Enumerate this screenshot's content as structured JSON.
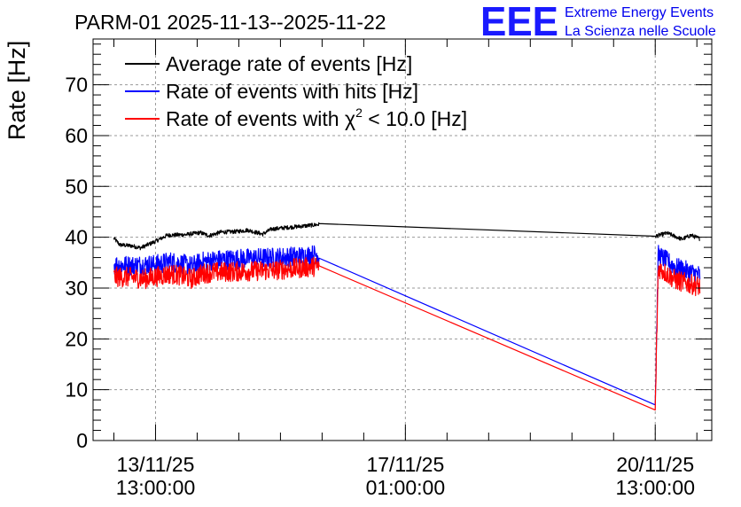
{
  "chart_data": {
    "type": "line",
    "title": "PARM-01 2025-11-13--2025-11-22",
    "ylabel": "Rate [Hz]",
    "xlabel": "",
    "ylim": [
      0,
      79
    ],
    "yticks": [
      0,
      10,
      20,
      30,
      40,
      50,
      60,
      70
    ],
    "ytick_labels": [
      "0",
      "10",
      "20",
      "30",
      "40",
      "50",
      "60",
      "70"
    ],
    "xlim_hours": [
      -21,
      187
    ],
    "xticks": [
      {
        "hours": 0,
        "date": "13/11/25",
        "time": "13:00:00"
      },
      {
        "hours": 84,
        "date": "17/11/25",
        "time": "01:00:00"
      },
      {
        "hours": 168,
        "date": "20/11/25",
        "time": "13:00:00"
      }
    ],
    "x_unit": "hours since 13/11/25 13:00:00",
    "grid": true,
    "legend_position": "top-left",
    "series": [
      {
        "name": "Average rate of events [Hz]",
        "color": "#000000",
        "noise": 0.4,
        "points": [
          [
            -14,
            39.8
          ],
          [
            -12,
            38.5
          ],
          [
            -8,
            38.3
          ],
          [
            -5,
            37.9
          ],
          [
            0,
            39.2
          ],
          [
            4,
            40.4
          ],
          [
            10,
            40.5
          ],
          [
            15,
            40.9
          ],
          [
            18,
            40.3
          ],
          [
            22,
            41.0
          ],
          [
            27,
            41.1
          ],
          [
            31,
            41.4
          ],
          [
            36,
            40.6
          ],
          [
            39,
            41.6
          ],
          [
            44,
            41.9
          ],
          [
            48,
            42.1
          ],
          [
            55,
            42.5
          ],
          [
            168,
            40.2
          ],
          [
            172,
            40.8
          ],
          [
            177,
            39.6
          ],
          [
            180,
            40.4
          ],
          [
            183,
            39.7
          ]
        ]
      },
      {
        "name": "Rate of events with hits [Hz]",
        "color": "#0000ff",
        "noise": 2.0,
        "points": [
          [
            -14,
            34.6
          ],
          [
            -8,
            34.4
          ],
          [
            -4,
            34.6
          ],
          [
            0,
            34.6
          ],
          [
            5,
            35.2
          ],
          [
            8,
            34.9
          ],
          [
            12,
            34.3
          ],
          [
            16,
            35.2
          ],
          [
            20,
            35.5
          ],
          [
            30,
            35.8
          ],
          [
            40,
            36.0
          ],
          [
            50,
            36.3
          ],
          [
            54,
            36.6
          ],
          [
            168,
            7.0
          ],
          [
            169,
            36.5
          ],
          [
            175,
            34.0
          ],
          [
            183,
            32.5
          ]
        ]
      },
      {
        "name": "Rate of events with χ² < 10.0 [Hz]",
        "color": "#ff0000",
        "noise": 2.0,
        "points": [
          [
            -14,
            32.2
          ],
          [
            -8,
            32.1
          ],
          [
            -4,
            31.8
          ],
          [
            0,
            32.2
          ],
          [
            5,
            32.8
          ],
          [
            8,
            32.5
          ],
          [
            12,
            31.8
          ],
          [
            16,
            32.9
          ],
          [
            20,
            33.1
          ],
          [
            30,
            33.3
          ],
          [
            40,
            33.5
          ],
          [
            50,
            34.0
          ],
          [
            54,
            34.3
          ],
          [
            168,
            6.0
          ],
          [
            169,
            34.0
          ],
          [
            175,
            31.5
          ],
          [
            183,
            30.3
          ]
        ]
      }
    ]
  },
  "legend": {
    "items": [
      {
        "text": "Average rate of events [Hz]",
        "color": "#000000"
      },
      {
        "text": "Rate of events with hits [Hz]",
        "color": "#0000ff"
      },
      {
        "text_prefix": "Rate of events with ",
        "chi": "χ",
        "sup": "2",
        "text_suffix": " < 10.0 [Hz]",
        "color": "#ff0000"
      }
    ]
  },
  "logo": {
    "mark": "EEE",
    "line1": "Extreme Energy Events",
    "line2": "La Scienza nelle Scuole",
    "color": "#1a1aff"
  }
}
